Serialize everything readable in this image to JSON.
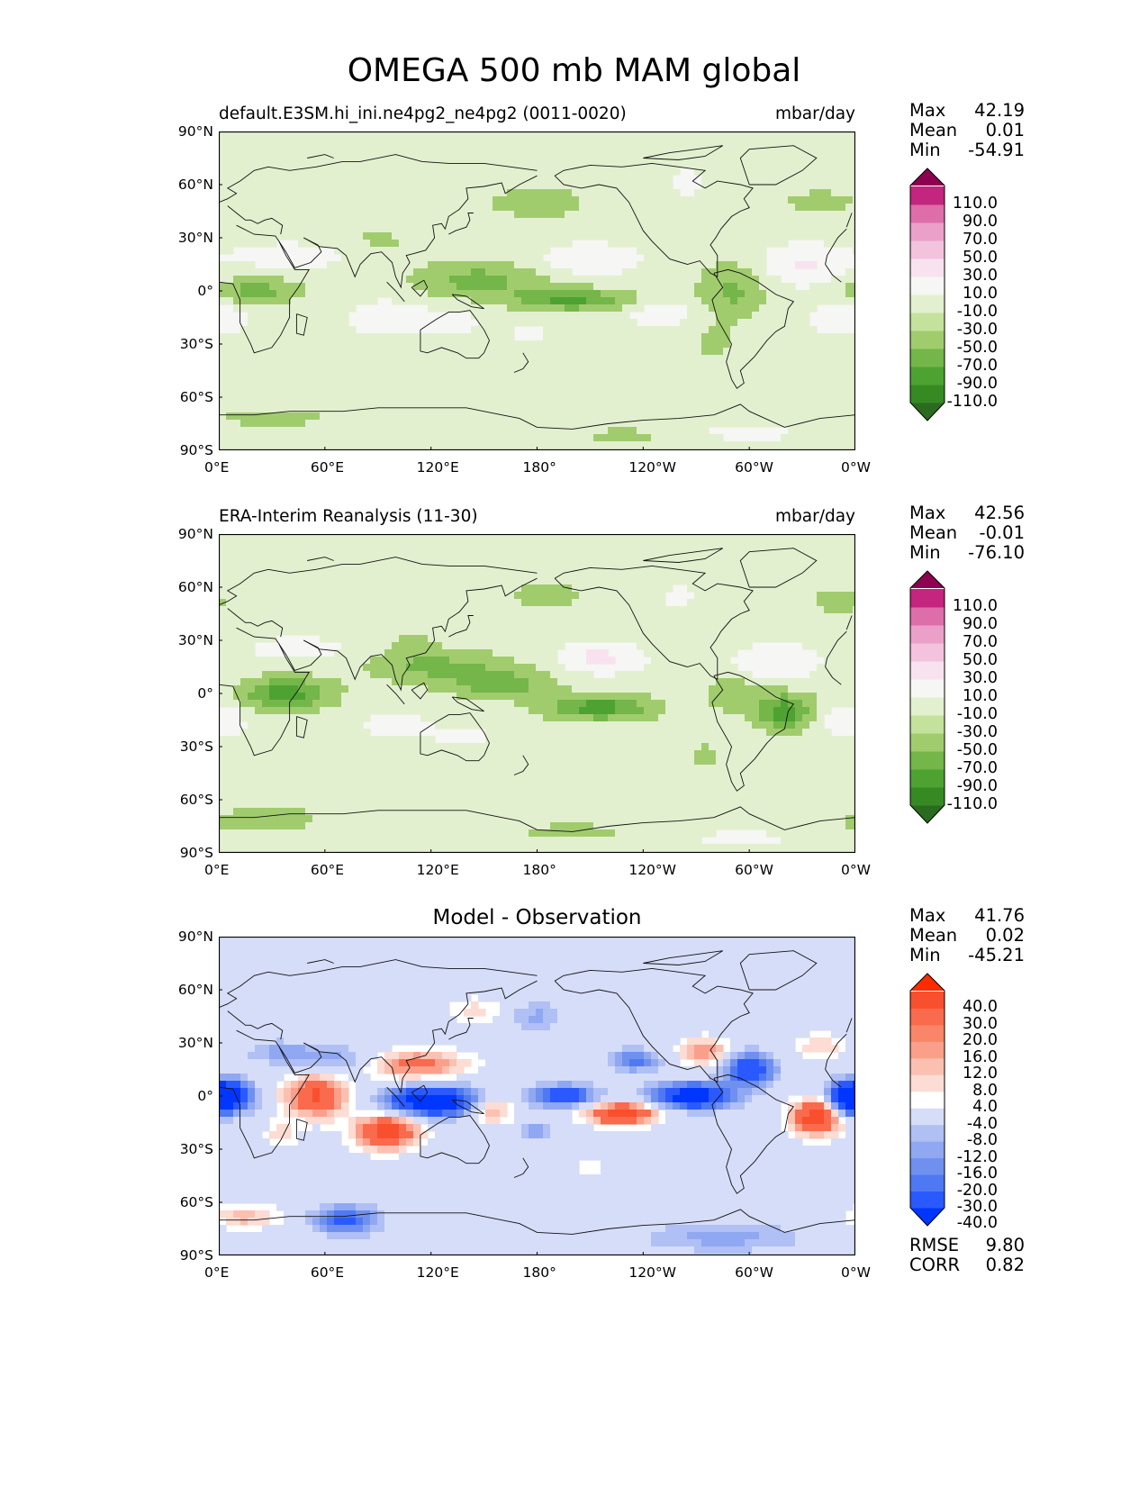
{
  "suptitle": "OMEGA 500 mb MAM global",
  "x_ticks": [
    "0°E",
    "60°E",
    "120°E",
    "180°",
    "120°W",
    "60°W",
    "0°W"
  ],
  "y_ticks": [
    "90°N",
    "60°N",
    "30°N",
    "0°",
    "30°S",
    "60°S",
    "90°S"
  ],
  "colors": {
    "omega_scale": [
      "#2b6b1f",
      "#378a23",
      "#4ea232",
      "#74b649",
      "#a0cc6e",
      "#c5e29c",
      "#e3f0cf",
      "#f6f6f4",
      "#f9e2ef",
      "#f3c2dd",
      "#eba0ca",
      "#de6eaa",
      "#c4257e",
      "#8e0151"
    ],
    "diff_scale": [
      "#0036ff",
      "#2a5aff",
      "#4f79f2",
      "#6f90ef",
      "#8fa8f1",
      "#b0c0f5",
      "#d6ddf8",
      "#ffffff",
      "#fddcd3",
      "#fcc0b1",
      "#fb9f8b",
      "#fb8568",
      "#f96b4c",
      "#f8502e",
      "#ff2b00"
    ],
    "coast": "#111111"
  },
  "chart_data": [
    {
      "type": "heatmap",
      "title": "default.E3SM.hi_ini.ne4pg2_ne4pg2 (0011-0020)",
      "units": "mbar/day",
      "stats": {
        "Max": "42.19",
        "Mean": "0.01",
        "Min": "-54.91"
      },
      "colorbar_labels": [
        "110.0",
        "90.0",
        "70.0",
        "50.0",
        "30.0",
        "10.0",
        "-10.0",
        "-30.0",
        "-50.0",
        "-70.0",
        "-90.0",
        "-110.0"
      ],
      "xlim": [
        0,
        360
      ],
      "ylim": [
        -90,
        90
      ],
      "blobs": [
        {
          "lon": 148,
          "lat": 6,
          "value": -38,
          "rlon": 35,
          "rlat": 10
        },
        {
          "lon": 200,
          "lat": -5,
          "value": -55,
          "rlon": 32,
          "rlat": 6
        },
        {
          "lon": 20,
          "lat": 0,
          "value": -40,
          "rlon": 25,
          "rlat": 7
        },
        {
          "lon": 290,
          "lat": 0,
          "value": -35,
          "rlon": 18,
          "rlat": 15
        },
        {
          "lon": 100,
          "lat": 30,
          "value": -18,
          "rlon": 25,
          "rlat": 10
        },
        {
          "lon": 180,
          "lat": 50,
          "value": -20,
          "rlon": 30,
          "rlat": 10
        },
        {
          "lon": 340,
          "lat": 50,
          "value": -18,
          "rlon": 22,
          "rlat": 8
        },
        {
          "lon": 280,
          "lat": -30,
          "value": -15,
          "rlon": 12,
          "rlat": 12
        },
        {
          "lon": 30,
          "lat": -72,
          "value": -16,
          "rlon": 40,
          "rlat": 6
        },
        {
          "lon": 230,
          "lat": -82,
          "value": -15,
          "rlon": 30,
          "rlat": 6
        },
        {
          "lon": 40,
          "lat": 20,
          "value": 22,
          "rlon": 35,
          "rlat": 8
        },
        {
          "lon": 210,
          "lat": 18,
          "value": 30,
          "rlon": 28,
          "rlat": 9
        },
        {
          "lon": 330,
          "lat": 15,
          "value": 32,
          "rlon": 24,
          "rlat": 12
        },
        {
          "lon": 95,
          "lat": -15,
          "value": 28,
          "rlon": 22,
          "rlat": 10
        },
        {
          "lon": 130,
          "lat": -18,
          "value": 22,
          "rlon": 18,
          "rlat": 8
        },
        {
          "lon": 250,
          "lat": -12,
          "value": 25,
          "rlon": 20,
          "rlat": 8
        },
        {
          "lon": 5,
          "lat": -15,
          "value": 20,
          "rlon": 12,
          "rlat": 10
        },
        {
          "lon": 345,
          "lat": -15,
          "value": 22,
          "rlon": 12,
          "rlat": 10
        },
        {
          "lon": 175,
          "lat": -25,
          "value": 15,
          "rlon": 15,
          "rlat": 7
        },
        {
          "lon": 300,
          "lat": -80,
          "value": 15,
          "rlon": 40,
          "rlat": 6
        },
        {
          "lon": 105,
          "lat": 35,
          "value": 16,
          "rlon": 12,
          "rlat": 8
        },
        {
          "lon": 265,
          "lat": 62,
          "value": 14,
          "rlon": 12,
          "rlat": 15
        }
      ]
    },
    {
      "type": "heatmap",
      "title": "ERA-Interim Reanalysis (11-30)",
      "units": "mbar/day",
      "stats": {
        "Max": "42.56",
        "Mean": "-0.01",
        "Min": "-76.10"
      },
      "colorbar_labels": [
        "110.0",
        "90.0",
        "70.0",
        "50.0",
        "30.0",
        "10.0",
        "-10.0",
        "-30.0",
        "-50.0",
        "-70.0",
        "-90.0",
        "-110.0"
      ],
      "xlim": [
        0,
        360
      ],
      "ylim": [
        -90,
        90
      ],
      "blobs": [
        {
          "lon": 38,
          "lat": 0,
          "value": -60,
          "rlon": 25,
          "rlat": 9
        },
        {
          "lon": 125,
          "lat": 15,
          "value": -35,
          "rlon": 40,
          "rlat": 9
        },
        {
          "lon": 160,
          "lat": 5,
          "value": -38,
          "rlon": 30,
          "rlat": 8
        },
        {
          "lon": 215,
          "lat": -8,
          "value": -60,
          "rlon": 30,
          "rlat": 7
        },
        {
          "lon": 320,
          "lat": -10,
          "value": -62,
          "rlon": 16,
          "rlat": 10
        },
        {
          "lon": 290,
          "lat": 0,
          "value": -25,
          "rlon": 15,
          "rlat": 10
        },
        {
          "lon": 30,
          "lat": -72,
          "value": -25,
          "rlon": 40,
          "rlat": 7
        },
        {
          "lon": 200,
          "lat": -78,
          "value": -15,
          "rlon": 40,
          "rlat": 6
        },
        {
          "lon": 185,
          "lat": 55,
          "value": -18,
          "rlon": 25,
          "rlat": 8
        },
        {
          "lon": 350,
          "lat": 52,
          "value": -16,
          "rlon": 20,
          "rlat": 8
        },
        {
          "lon": 110,
          "lat": 28,
          "value": -15,
          "rlon": 15,
          "rlat": 8
        },
        {
          "lon": 275,
          "lat": -35,
          "value": -15,
          "rlon": 12,
          "rlat": 8
        },
        {
          "lon": 45,
          "lat": 25,
          "value": 20,
          "rlon": 30,
          "rlat": 8
        },
        {
          "lon": 215,
          "lat": 20,
          "value": 35,
          "rlon": 25,
          "rlat": 9
        },
        {
          "lon": 315,
          "lat": 18,
          "value": 30,
          "rlon": 25,
          "rlat": 10
        },
        {
          "lon": 100,
          "lat": -18,
          "value": 18,
          "rlon": 22,
          "rlat": 10
        },
        {
          "lon": 5,
          "lat": -15,
          "value": 28,
          "rlon": 10,
          "rlat": 10
        },
        {
          "lon": 350,
          "lat": -15,
          "value": 24,
          "rlon": 10,
          "rlat": 10
        },
        {
          "lon": 140,
          "lat": -25,
          "value": 14,
          "rlon": 20,
          "rlat": 8
        },
        {
          "lon": 295,
          "lat": -82,
          "value": 15,
          "rlon": 40,
          "rlat": 6
        },
        {
          "lon": 60,
          "lat": -75,
          "value": 14,
          "rlon": 15,
          "rlat": 6
        },
        {
          "lon": 260,
          "lat": 55,
          "value": 14,
          "rlon": 12,
          "rlat": 12
        }
      ]
    },
    {
      "type": "heatmap",
      "title": "Model - Observation",
      "units": "",
      "stats": {
        "Max": "41.76",
        "Mean": "0.02",
        "Min": "-45.21"
      },
      "extra_stats": {
        "RMSE": "9.80",
        "CORR": "0.82"
      },
      "colorbar_labels": [
        "40.0",
        "30.0",
        "20.0",
        "16.0",
        "12.0",
        "8.0",
        "4.0",
        "-4.0",
        "-8.0",
        "-12.0",
        "-16.0",
        "-20.0",
        "-30.0",
        "-40.0"
      ],
      "xlim": [
        0,
        360
      ],
      "ylim": [
        -90,
        90
      ],
      "blobs": [
        {
          "lon": 4,
          "lat": 0,
          "value": -42,
          "rlon": 14,
          "rlat": 9
        },
        {
          "lon": 120,
          "lat": -3,
          "value": -45,
          "rlon": 25,
          "rlat": 8
        },
        {
          "lon": 195,
          "lat": 0,
          "value": -28,
          "rlon": 18,
          "rlat": 6
        },
        {
          "lon": 268,
          "lat": 0,
          "value": -40,
          "rlon": 22,
          "rlat": 7
        },
        {
          "lon": 355,
          "lat": -2,
          "value": -32,
          "rlon": 10,
          "rlat": 8
        },
        {
          "lon": 300,
          "lat": 15,
          "value": -30,
          "rlon": 14,
          "rlat": 9
        },
        {
          "lon": 235,
          "lat": 20,
          "value": -18,
          "rlon": 14,
          "rlat": 6
        },
        {
          "lon": 70,
          "lat": 20,
          "value": -12,
          "rlon": 28,
          "rlat": 8
        },
        {
          "lon": 35,
          "lat": 25,
          "value": -10,
          "rlon": 18,
          "rlat": 6
        },
        {
          "lon": 72,
          "lat": -70,
          "value": -22,
          "rlon": 18,
          "rlat": 8
        },
        {
          "lon": 285,
          "lat": -80,
          "value": -10,
          "rlon": 45,
          "rlat": 8
        },
        {
          "lon": 180,
          "lat": -20,
          "value": -12,
          "rlon": 8,
          "rlat": 5
        },
        {
          "lon": 180,
          "lat": 45,
          "value": -9,
          "rlon": 15,
          "rlat": 8
        },
        {
          "lon": 55,
          "lat": 0,
          "value": 32,
          "rlon": 18,
          "rlat": 12
        },
        {
          "lon": 95,
          "lat": -20,
          "value": 36,
          "rlon": 18,
          "rlat": 10
        },
        {
          "lon": 110,
          "lat": 18,
          "value": 25,
          "rlon": 30,
          "rlat": 8
        },
        {
          "lon": 155,
          "lat": -8,
          "value": 18,
          "rlon": 12,
          "rlat": 8
        },
        {
          "lon": 228,
          "lat": -10,
          "value": 38,
          "rlon": 20,
          "rlat": 6
        },
        {
          "lon": 338,
          "lat": -12,
          "value": 38,
          "rlon": 14,
          "rlat": 10
        },
        {
          "lon": 275,
          "lat": 25,
          "value": 20,
          "rlon": 14,
          "rlat": 8
        },
        {
          "lon": 340,
          "lat": 28,
          "value": 12,
          "rlon": 14,
          "rlat": 8
        },
        {
          "lon": 15,
          "lat": -68,
          "value": 14,
          "rlon": 20,
          "rlat": 7
        },
        {
          "lon": 35,
          "lat": -22,
          "value": 10,
          "rlon": 10,
          "rlat": 8
        },
        {
          "lon": 145,
          "lat": 48,
          "value": 10,
          "rlon": 15,
          "rlat": 8
        },
        {
          "lon": 210,
          "lat": -40,
          "value": 9,
          "rlon": 8,
          "rlat": 5
        }
      ]
    }
  ]
}
